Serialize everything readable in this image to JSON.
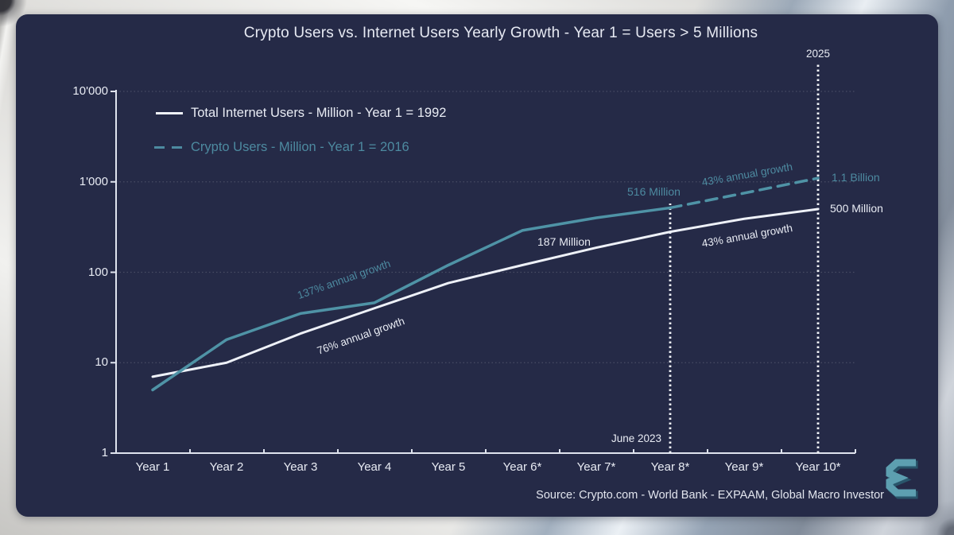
{
  "title": "Crypto Users vs. Internet Users Yearly Growth - Year 1 = Users > 5 Millions",
  "legend": {
    "items": [
      {
        "label": "Total Internet Users - Million - Year 1 = 1992",
        "color": "#eef1f8",
        "style": "solid"
      },
      {
        "label": "Crypto Users - Million - Year 1 = 2016",
        "color": "#4d8aa0",
        "style": "dashed"
      }
    ]
  },
  "chart_data": {
    "type": "line",
    "title": "Crypto Users vs. Internet Users Yearly Growth - Year 1 = Users > 5 Millions",
    "x_categories": [
      "Year 1",
      "Year 2",
      "Year 3",
      "Year 4",
      "Year 5",
      "Year 6*",
      "Year 7*",
      "Year 8*",
      "Year 9*",
      "Year 10*"
    ],
    "y_axis": {
      "scale": "log",
      "range": [
        1,
        10000
      ],
      "tick_labels": [
        "10'000",
        "1'000",
        "100",
        "10",
        "1"
      ],
      "tick_values": [
        10000,
        1000,
        100,
        10,
        1
      ]
    },
    "grid": "horizontal-dotted",
    "legend_position": "upper-left-inside",
    "series": [
      {
        "name": "Total Internet Users - Million - Year 1 = 1992",
        "color": "#eef1f8",
        "dash": "",
        "width": 3,
        "start_index": 0,
        "values": [
          7,
          10,
          21,
          40,
          76,
          120,
          187,
          280,
          390,
          500
        ]
      },
      {
        "name": "Crypto Users - Million - Year 1 = 2016 (actual)",
        "color": "#4f93a6",
        "dash": "",
        "width": 3.5,
        "start_index": 0,
        "values": [
          5,
          18,
          35,
          46,
          120,
          290,
          400,
          516
        ]
      },
      {
        "name": "Crypto Users - Million (projection)",
        "color": "#4f93a6",
        "dash": "14 9",
        "width": 3.5,
        "start_index": 7,
        "values": [
          516,
          750,
          1100
        ]
      }
    ],
    "markers": [
      {
        "label": "June 2023",
        "x_index": 7
      },
      {
        "label": "2025",
        "x_index": 9
      }
    ]
  },
  "annotations": {
    "crypto_growth_early": "137% annual growth",
    "internet_growth_early": "76% annual growth",
    "internet_year7": "187 Million",
    "crypto_year8": "516 Million",
    "crypto_growth_projection": "43% annual growth",
    "crypto_year10": "1.1 Billion",
    "internet_year10": "500 Million",
    "internet_growth_late": "43% annual growth",
    "marker_june": "June 2023",
    "marker_2025": "2025"
  },
  "source": "Source: Crypto.com - World Bank - EXPAAM, Global Macro Investor",
  "colors": {
    "panel_background": "#252a47",
    "teal_accent": "#4d8aa0",
    "white_line": "#eef1f8"
  },
  "logo": {
    "name": "expaam-logo"
  }
}
